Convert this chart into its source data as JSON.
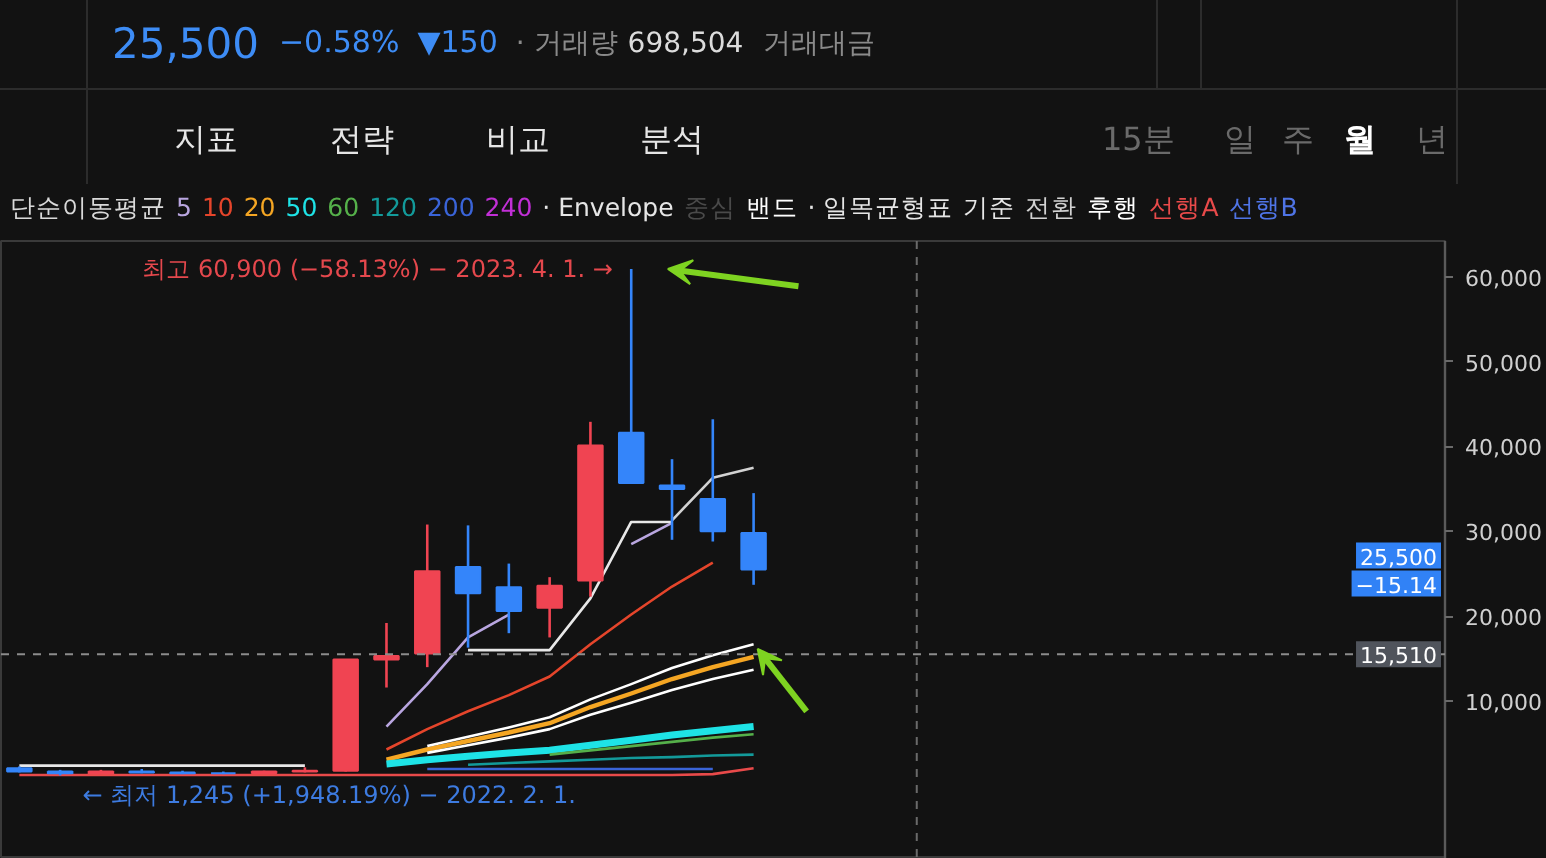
{
  "chart_data": {
    "type": "candlestick",
    "categories": [
      null,
      null,
      null,
      null,
      null,
      null,
      null,
      null,
      null,
      null,
      null,
      null,
      null,
      null,
      null,
      null,
      null,
      null,
      null
    ],
    "ohlc": [
      [
        2100,
        2300,
        1600,
        1700
      ],
      [
        1700,
        1900,
        1245,
        1500
      ],
      [
        1500,
        1900,
        1400,
        1700
      ],
      [
        1700,
        2000,
        1500,
        1600
      ],
      [
        1600,
        1800,
        1400,
        1500
      ],
      [
        1500,
        1700,
        1400,
        1500
      ],
      [
        1500,
        1800,
        1400,
        1700
      ],
      [
        1700,
        2200,
        1600,
        1800
      ],
      [
        1800,
        14900,
        1700,
        14900
      ],
      [
        14900,
        19200,
        11600,
        15300
      ],
      [
        15600,
        30800,
        14000,
        25300
      ],
      [
        25800,
        30700,
        16300,
        22700
      ],
      [
        23400,
        26200,
        18000,
        20600
      ],
      [
        21000,
        24600,
        17500,
        23600
      ],
      [
        24200,
        42900,
        22300,
        40100
      ],
      [
        41600,
        60900,
        35600,
        35700
      ],
      [
        35400,
        38500,
        29000,
        35000
      ],
      [
        33800,
        43200,
        28800,
        30000
      ],
      [
        29800,
        34500,
        23700,
        25500
      ]
    ],
    "colors": [
      "#3485fa",
      "#3485fa",
      "#f04452",
      "#3485fa",
      "#3485fa",
      "#3485fa",
      "#f04452",
      "#f04452",
      "#f04452",
      "#f04452",
      "#f04452",
      "#3485fa",
      "#3485fa",
      "#f04452",
      "#f04452",
      "#3485fa",
      "#3485fa",
      "#3485fa",
      "#3485fa"
    ],
    "series": [
      {
        "type": "line",
        "name": "5",
        "color": "#b9a6e0",
        "values": [
          null,
          null,
          null,
          null,
          null,
          null,
          null,
          null,
          null,
          7000,
          12000,
          17500,
          20200,
          null,
          null,
          28500,
          31000,
          null,
          null
        ]
      },
      {
        "type": "line",
        "name": "10",
        "color": "#e5452b",
        "values": [
          null,
          null,
          null,
          null,
          null,
          null,
          null,
          null,
          null,
          4300,
          6700,
          8800,
          10700,
          12900,
          16700,
          20200,
          23500,
          26300,
          null
        ]
      },
      {
        "type": "line",
        "name": "20",
        "color": "#f5a623",
        "values": [
          null,
          null,
          null,
          null,
          null,
          null,
          null,
          null,
          null,
          3100,
          4300,
          5300,
          6300,
          7400,
          9300,
          10900,
          12600,
          14000,
          15200
        ]
      },
      {
        "type": "line",
        "name": "50",
        "color": "#1ee3e6",
        "values": [
          null,
          null,
          null,
          null,
          null,
          null,
          null,
          null,
          null,
          2600,
          3100,
          3500,
          3900,
          4200,
          4800,
          5400,
          6000,
          6500,
          7000
        ]
      },
      {
        "type": "line",
        "name": "60",
        "color": "#55b04a",
        "values": [
          null,
          null,
          null,
          null,
          null,
          null,
          null,
          null,
          null,
          null,
          null,
          null,
          null,
          3700,
          4200,
          4700,
          5200,
          5700,
          6100
        ]
      },
      {
        "type": "line",
        "name": "120",
        "color": "#139a9a",
        "values": [
          null,
          null,
          null,
          null,
          null,
          null,
          null,
          null,
          null,
          null,
          null,
          2500,
          2700,
          2900,
          3100,
          3300,
          3400,
          3600,
          3700
        ]
      },
      {
        "type": "line",
        "name": "200",
        "color": "#3a64d8",
        "values": [
          null,
          null,
          null,
          null,
          null,
          null,
          null,
          null,
          null,
          null,
          2000,
          2000,
          2000,
          2000,
          2000,
          2000,
          2000,
          2000,
          null
        ]
      },
      {
        "type": "line",
        "name": "240",
        "color": "#c12fd6",
        "values": [
          null,
          null,
          null,
          null,
          null,
          null,
          null,
          null,
          null,
          null,
          null,
          null,
          null,
          null,
          null,
          null,
          null,
          null,
          null
        ]
      },
      {
        "type": "line",
        "name": "중심",
        "color": "#4a4a4a",
        "values": [
          null,
          null,
          null,
          null,
          null,
          null,
          null,
          null,
          null,
          null,
          null,
          null,
          null,
          null,
          null,
          null,
          null,
          null,
          null
        ]
      },
      {
        "type": "line",
        "name": "밴드",
        "color": "#ffffff",
        "values": [
          null,
          null,
          null,
          null,
          null,
          null,
          null,
          null,
          null,
          null,
          4700,
          5800,
          6900,
          8100,
          10200,
          12000,
          13900,
          15400,
          16700
        ]
      },
      {
        "type": "line",
        "color": "#ffffff",
        "values": [
          null,
          null,
          null,
          null,
          null,
          null,
          null,
          null,
          null,
          null,
          3900,
          4800,
          5700,
          6700,
          8400,
          9800,
          11300,
          12600,
          13700
        ]
      },
      {
        "type": "line",
        "name": "기준",
        "color": "#e8e8e8",
        "values": [
          2400,
          2400,
          2400,
          2400,
          2400,
          2400,
          2400,
          2400,
          null,
          null,
          null,
          16000,
          16000,
          16000,
          22100,
          31100,
          31100,
          null,
          null
        ]
      },
      {
        "type": "line",
        "name": "전환",
        "color": "#d2d2d2",
        "values": [
          null,
          null,
          null,
          null,
          null,
          null,
          null,
          null,
          null,
          null,
          null,
          null,
          null,
          null,
          null,
          null,
          31300,
          36300,
          37500
        ]
      },
      {
        "type": "line",
        "name": "후행",
        "color": "#ffffff",
        "values": [
          null,
          null,
          null,
          null,
          null,
          null,
          null,
          null,
          null,
          null,
          null,
          null,
          null,
          null,
          null,
          null,
          null,
          null,
          null
        ]
      },
      {
        "type": "line",
        "name": "선행A",
        "color": "#e84a4a",
        "values": [
          1300,
          1300,
          1300,
          1300,
          1300,
          1300,
          1300,
          1300,
          1300,
          1300,
          1300,
          1300,
          1300,
          1300,
          1300,
          1300,
          1300,
          1400,
          2100
        ]
      },
      {
        "type": "line",
        "name": "선행B",
        "color": "#4f74e6",
        "values": [
          null,
          null,
          null,
          null,
          null,
          null,
          null,
          null,
          null,
          null,
          null,
          null,
          null,
          null,
          null,
          null,
          null,
          null,
          null
        ]
      }
    ],
    "ylim": [
      -8600,
      64200
    ],
    "yticks": [
      {
        "value": 10000,
        "label": "10,000"
      },
      {
        "value": 20000,
        "label": "20,000"
      },
      {
        "value": 30000,
        "label": "30,000"
      },
      {
        "value": 40000,
        "label": "40,000"
      },
      {
        "value": 50000,
        "label": "50,000"
      },
      {
        "value": 60000,
        "label": "60,000"
      }
    ],
    "ref_lines": [
      {
        "axis": "y",
        "value": 15510,
        "label": "15,510",
        "color": "#8c8c8c",
        "line_style": "dashed"
      }
    ],
    "legend": "top",
    "legend_title": "단순이동평균",
    "tick_labels": "y",
    "annotations": [
      "최고 60,900 (−58.13%) − 2023. 4. 1. →",
      "← 최저 1,245 (+1,948.19%) − 2022. 2. 1.",
      "25,500",
      "−15.14",
      "25,500",
      "−0.58%",
      "▼150",
      "· 거래량",
      "698,504",
      "거래대금",
      "지표",
      "전략",
      "비교",
      "분석",
      "15분",
      "일",
      "주",
      "월",
      "년",
      "· Envelope",
      "· 일목균형표"
    ]
  }
}
